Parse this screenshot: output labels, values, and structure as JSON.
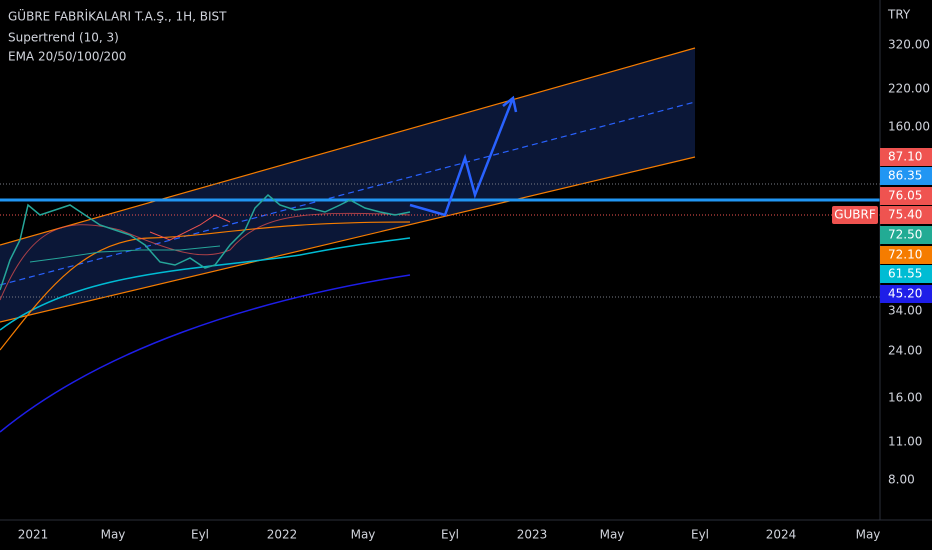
{
  "header": {
    "title": "GÜBRE FABRİKALARI T.A.Ş., 1H, BIST",
    "indicators": [
      "Supertrend (10, 3)",
      "EMA 20/50/100/200"
    ]
  },
  "price_axis": {
    "currency": "TRY",
    "labels": [
      "320.00",
      "220.00",
      "160.00",
      "34.00",
      "24.00",
      "16.00",
      "11.00",
      "8.00"
    ]
  },
  "symbol_tag": {
    "text": "GUBRF",
    "color": "#ef5350"
  },
  "price_tags": [
    {
      "text": "87.10",
      "color": "#ef5350"
    },
    {
      "text": "86.35",
      "color": "#2196f3"
    },
    {
      "text": "76.05",
      "color": "#ef5350"
    },
    {
      "text": "75.40",
      "color": "#ef5350"
    },
    {
      "text": "72.50",
      "color": "#22ab94"
    },
    {
      "text": "72.10",
      "color": "#f57c00"
    },
    {
      "text": "61.55",
      "color": "#00bcd4"
    },
    {
      "text": "45.20",
      "color": "#1e1ee8"
    }
  ],
  "time_axis": [
    "2021",
    "May",
    "Eyl",
    "2022",
    "May",
    "Eyl",
    "2023",
    "May",
    "Eyl",
    "2024",
    "May"
  ]
}
